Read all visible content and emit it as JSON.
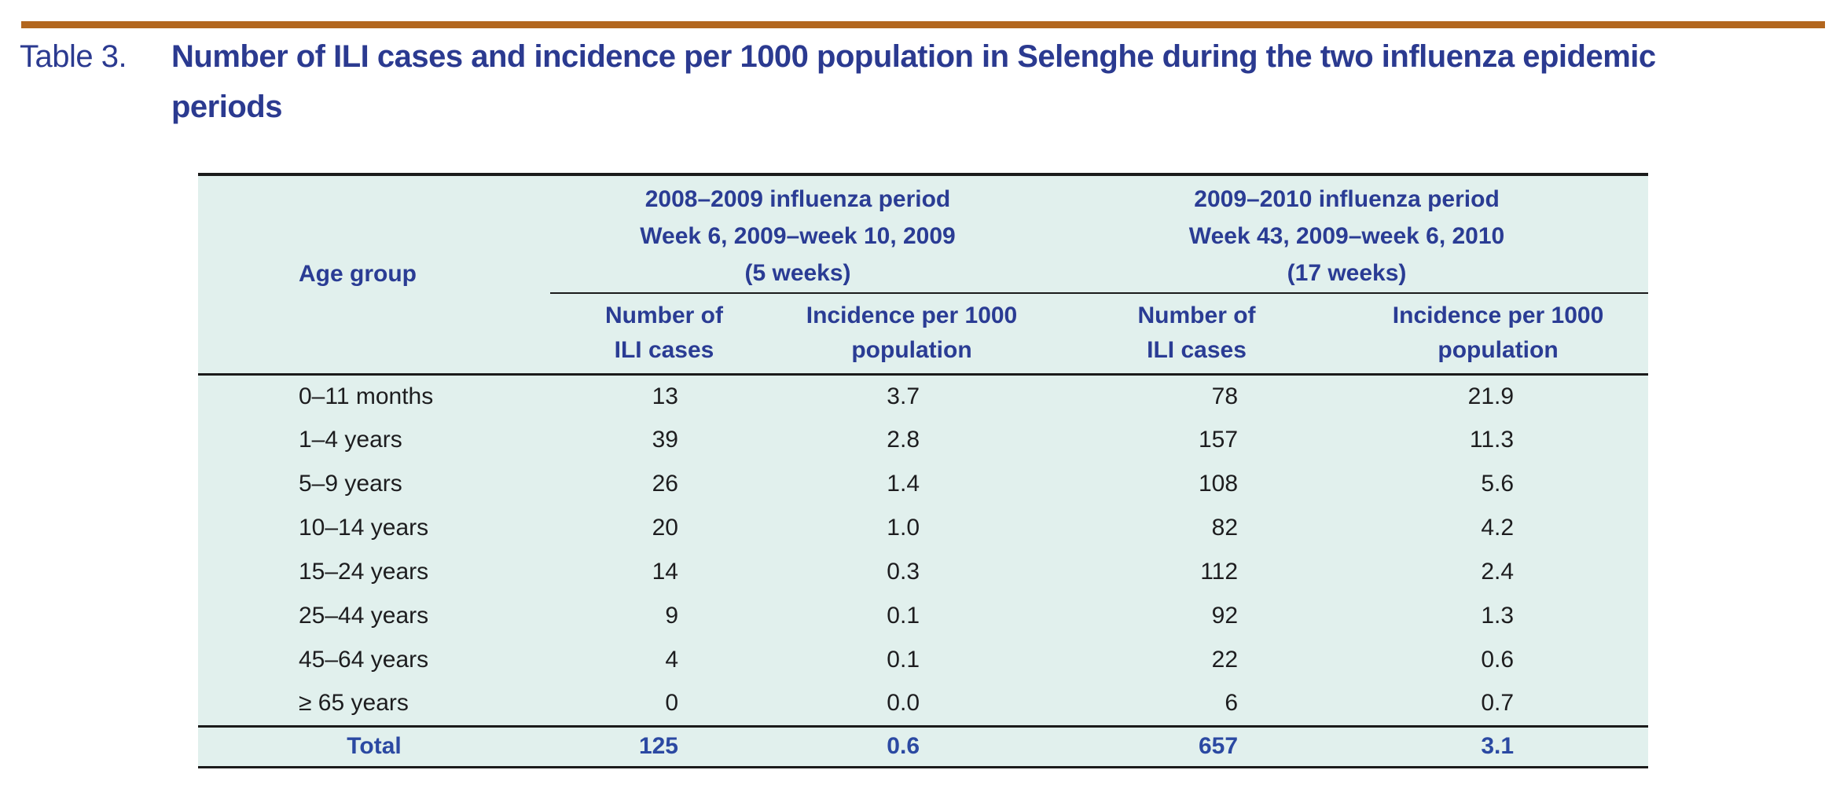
{
  "colors": {
    "title_text": "#2b3a90",
    "header_text": "#2a3c94",
    "total_text": "#2b49a2",
    "body_text": "#1d1d1f",
    "table_bg": "#e1f0ed",
    "rule": "#1b1b1b",
    "accent": "#b2661e"
  },
  "heading": {
    "prefix": "Table 3.",
    "line1": "Number of ILI cases and incidence per 1000 population in Selenghe during the two influenza epidemic",
    "line2": "periods"
  },
  "table": {
    "age_group_header": "Age group",
    "groups": [
      {
        "period_lines": [
          "2008–2009 influenza period",
          "Week 6, 2009–week 10, 2009",
          "(5 weeks)"
        ]
      },
      {
        "period_lines": [
          "2009–2010 influenza period",
          "Week 43, 2009–week 6, 2010",
          "(17 weeks)"
        ]
      }
    ],
    "subheaders": [
      {
        "lines": [
          "Number of",
          "ILI cases"
        ]
      },
      {
        "lines": [
          "Incidence per 1000",
          "population"
        ]
      },
      {
        "lines": [
          "Number of",
          "ILI cases"
        ]
      },
      {
        "lines": [
          "Incidence per 1000",
          "population"
        ]
      }
    ],
    "rows": [
      {
        "age_group": "0–11 months",
        "cases_1": "13",
        "incidence_1": "3.7",
        "cases_2": "78",
        "incidence_2": "21.9"
      },
      {
        "age_group": "1–4 years",
        "cases_1": "39",
        "incidence_1": "2.8",
        "cases_2": "157",
        "incidence_2": "11.3"
      },
      {
        "age_group": "5–9 years",
        "cases_1": "26",
        "incidence_1": "1.4",
        "cases_2": "108",
        "incidence_2": "5.6"
      },
      {
        "age_group": "10–14 years",
        "cases_1": "20",
        "incidence_1": "1.0",
        "cases_2": "82",
        "incidence_2": "4.2"
      },
      {
        "age_group": "15–24 years",
        "cases_1": "14",
        "incidence_1": "0.3",
        "cases_2": "112",
        "incidence_2": "2.4"
      },
      {
        "age_group": "25–44 years",
        "cases_1": "9",
        "incidence_1": "0.1",
        "cases_2": "92",
        "incidence_2": "1.3"
      },
      {
        "age_group": "45–64 years",
        "cases_1": "4",
        "incidence_1": "0.1",
        "cases_2": "22",
        "incidence_2": "0.6"
      },
      {
        "age_group": "≥ 65 years",
        "cases_1": "0",
        "incidence_1": "0.0",
        "cases_2": "6",
        "incidence_2": "0.7"
      }
    ],
    "total_row": {
      "label": "Total",
      "cases_1": "125",
      "incidence_1": "0.6",
      "cases_2": "657",
      "incidence_2": "3.1"
    }
  }
}
